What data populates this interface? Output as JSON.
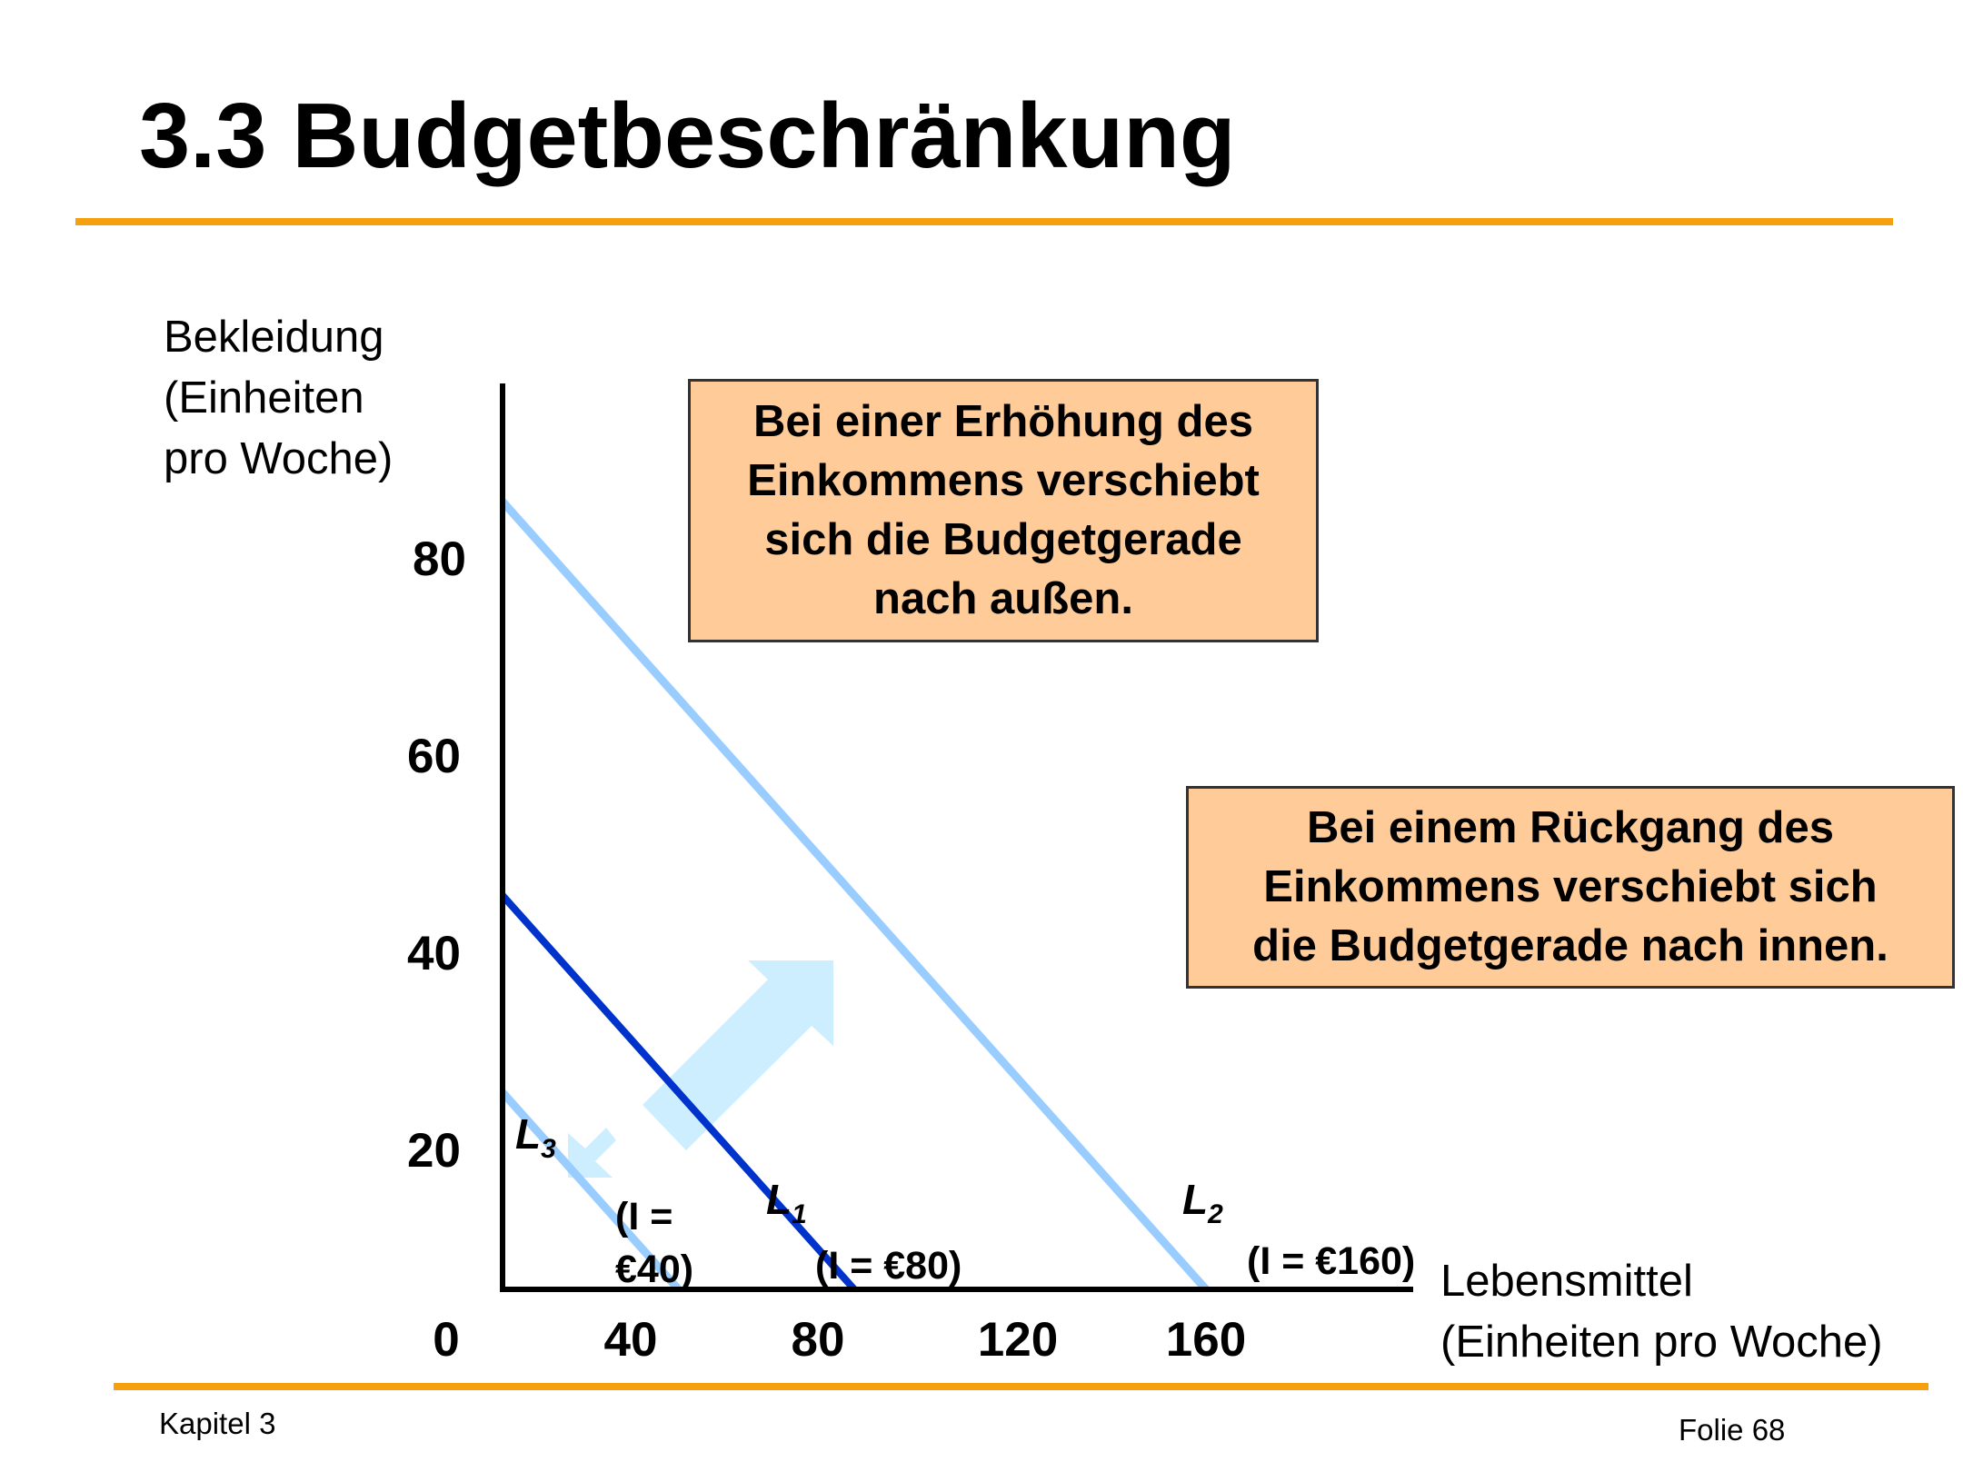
{
  "title": "3.3 Budgetbeschränkung",
  "footer": {
    "left": "Kapitel 3",
    "right": "Folie 68"
  },
  "chart_data": {
    "type": "line",
    "ylabel_lines": [
      "Bekleidung",
      "(Einheiten",
      "pro Woche)"
    ],
    "xlabel_lines": [
      "Lebensmittel",
      "(Einheiten pro Woche)"
    ],
    "x_ticks": [
      "0",
      "40",
      "80",
      "120",
      "160"
    ],
    "y_ticks": [
      "80",
      "60",
      "40",
      "20"
    ],
    "xlim": [
      0,
      200
    ],
    "ylim": [
      0,
      80
    ],
    "series": [
      {
        "name": "L3",
        "label_main": "L",
        "label_sub": "3",
        "income_lines": [
          "(I =",
          "€40)"
        ],
        "income_symbol": "I",
        "x": [
          0,
          40
        ],
        "y": [
          20,
          0
        ],
        "color": "#99ccff"
      },
      {
        "name": "L1",
        "label_main": "L",
        "label_sub": "1",
        "income_lines": [
          "(I = €80)"
        ],
        "income_symbol": "I",
        "x": [
          0,
          80
        ],
        "y": [
          40,
          0
        ],
        "color": "#0033cc"
      },
      {
        "name": "L2",
        "label_main": "L",
        "label_sub": "2",
        "income_lines": [
          "(I = €160)"
        ],
        "income_symbol": "I",
        "x": [
          0,
          160
        ],
        "y": [
          80,
          0
        ],
        "color": "#99ccff"
      }
    ],
    "arrow_color": "#cceeff"
  },
  "callouts": {
    "increase": [
      "Bei einer Erhöhung des",
      "Einkommens verschiebt",
      "sich die Budgetgerade",
      "nach außen."
    ],
    "decrease": [
      "Bei einem Rückgang des",
      "Einkommens verschiebt sich",
      "die Budgetgerade nach innen."
    ]
  }
}
